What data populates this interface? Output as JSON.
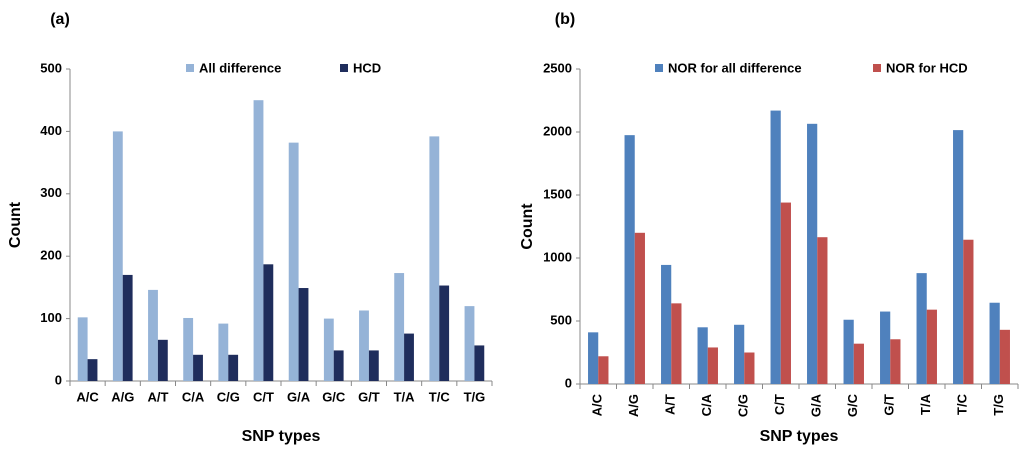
{
  "chart_data": [
    {
      "type": "bar",
      "title": "(a)",
      "xlabel": "SNP types",
      "ylabel": "Count",
      "categories": [
        "A/C",
        "A/G",
        "A/T",
        "C/A",
        "C/G",
        "C/T",
        "G/A",
        "G/C",
        "G/T",
        "T/A",
        "T/C",
        "T/G"
      ],
      "series": [
        {
          "name": "All difference",
          "color": "#95b3d7",
          "values": [
            102,
            400,
            146,
            101,
            92,
            450,
            382,
            100,
            113,
            173,
            392,
            120
          ]
        },
        {
          "name": "HCD",
          "color": "#1f2d5c",
          "values": [
            35,
            170,
            66,
            42,
            42,
            187,
            149,
            49,
            49,
            76,
            153,
            57
          ]
        }
      ],
      "ylim": [
        0,
        500
      ],
      "yticks": [
        0,
        100,
        200,
        300,
        400,
        500
      ],
      "grid": false,
      "legend": "top"
    },
    {
      "type": "bar",
      "title": "(b)",
      "xlabel": "SNP types",
      "ylabel": "Count",
      "categories": [
        "A/C",
        "A/G",
        "A/T",
        "C/A",
        "C/G",
        "C/T",
        "G/A",
        "G/C",
        "G/T",
        "T/A",
        "T/C",
        "T/G"
      ],
      "series": [
        {
          "name": "NOR for all difference",
          "color": "#4f81bd",
          "values": [
            410,
            1975,
            945,
            450,
            470,
            2170,
            2065,
            510,
            575,
            880,
            2015,
            645
          ]
        },
        {
          "name": "NOR for HCD",
          "color": "#c0504d",
          "values": [
            220,
            1200,
            640,
            290,
            250,
            1440,
            1165,
            320,
            355,
            590,
            1145,
            430
          ]
        }
      ],
      "ylim": [
        0,
        2500
      ],
      "yticks": [
        0,
        500,
        1000,
        1500,
        2000,
        2500
      ],
      "grid": false,
      "legend": "top"
    }
  ]
}
